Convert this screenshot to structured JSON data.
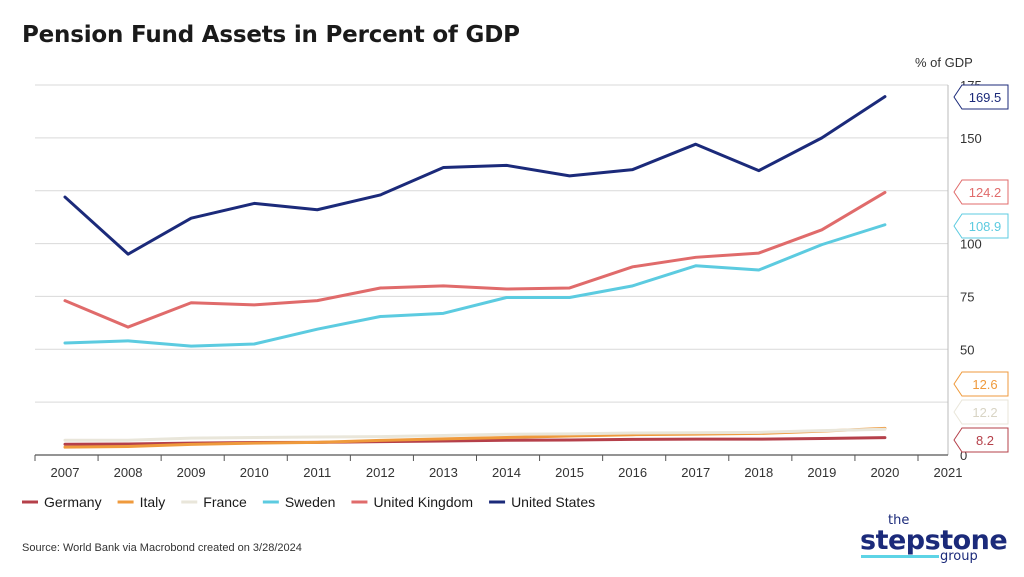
{
  "title": "Pension Fund Assets in Percent of GDP",
  "unit_label": "% of GDP",
  "source": "Source: World Bank via Macrobond created on 3/28/2024",
  "logo": {
    "the": "the",
    "main": "stepstone",
    "group": "group"
  },
  "chart_data": {
    "type": "line",
    "title": "Pension Fund Assets in Percent of GDP",
    "ylabel": "% of GDP",
    "xlabel": "",
    "x": [
      2007,
      2008,
      2009,
      2010,
      2011,
      2012,
      2013,
      2014,
      2015,
      2016,
      2017,
      2018,
      2019,
      2020
    ],
    "x_ticks": [
      "2007",
      "2008",
      "2009",
      "2010",
      "2011",
      "2012",
      "2013",
      "2014",
      "2015",
      "2016",
      "2017",
      "2018",
      "2019",
      "2020",
      "2021"
    ],
    "xlim": [
      2007,
      2021
    ],
    "ylim": [
      0,
      175
    ],
    "y_ticks": [
      0,
      50,
      75,
      100,
      150,
      175
    ],
    "y_tick_labels": [
      "0",
      "50",
      "75",
      "100",
      "150",
      "175"
    ],
    "grid": true,
    "legend": "bottom-left",
    "series": [
      {
        "name": "Germany",
        "color": "#b5404a",
        "values": [
          5.1,
          5.2,
          5.6,
          5.9,
          6.0,
          6.3,
          6.6,
          7.0,
          7.1,
          7.4,
          7.5,
          7.5,
          7.8,
          8.2
        ],
        "end_label": "8.2"
      },
      {
        "name": "Italy",
        "color": "#ef9a3c",
        "values": [
          3.7,
          4.0,
          5.0,
          5.6,
          6.0,
          6.9,
          7.6,
          8.3,
          9.0,
          9.6,
          9.9,
          10.2,
          11.3,
          12.6
        ],
        "end_label": "12.6"
      },
      {
        "name": "France",
        "color": "#e9e6da",
        "values": [
          7.0,
          7.0,
          8.0,
          8.3,
          8.5,
          8.7,
          9.2,
          9.8,
          10.0,
          10.4,
          10.5,
          10.7,
          11.5,
          12.2
        ],
        "end_label": "12.2"
      },
      {
        "name": "Sweden",
        "color": "#5ccbe0",
        "values": [
          53,
          54,
          51.5,
          52.5,
          59.5,
          65.5,
          67,
          74.5,
          74.5,
          80,
          89.5,
          87.5,
          99.5,
          108.9
        ],
        "end_label": "108.9"
      },
      {
        "name": "United Kingdom",
        "color": "#e06b6b",
        "values": [
          73,
          60.5,
          72,
          71,
          73,
          79,
          80,
          78.5,
          79,
          89,
          93.5,
          95.5,
          106.5,
          124.2
        ],
        "end_label": "124.2"
      },
      {
        "name": "United States",
        "color": "#1b2a7a",
        "values": [
          122,
          95,
          112,
          119,
          116,
          123,
          136,
          137,
          132,
          135,
          147,
          134.5,
          150,
          169.5
        ],
        "end_label": "169.5"
      }
    ]
  }
}
